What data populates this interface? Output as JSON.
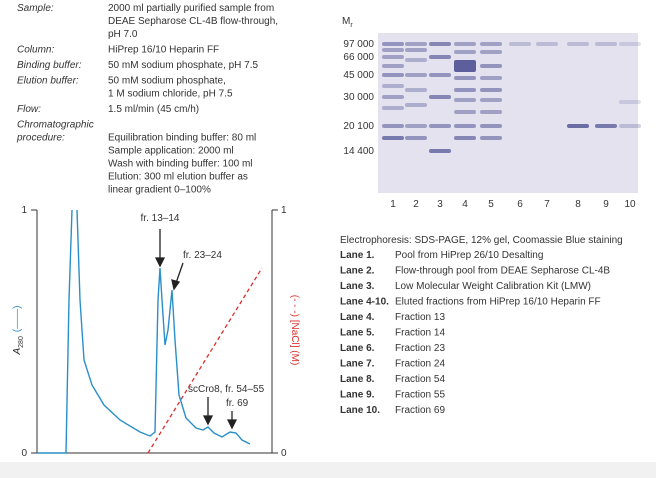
{
  "conditions": [
    {
      "label": "Sample:",
      "lines": [
        "2000 ml partially purified sample from",
        "DEAE Sepharose CL-4B flow-through,",
        "pH 7.0"
      ]
    },
    {
      "label": "Column:",
      "lines": [
        "HiPrep 16/10 Heparin FF"
      ]
    },
    {
      "label": "Binding buffer:",
      "lines": [
        "50 mM sodium phosphate, pH 7.5"
      ]
    },
    {
      "label": "Elution buffer:",
      "lines": [
        "50 mM sodium phosphate,",
        "1 M sodium chloride, pH 7.5"
      ]
    },
    {
      "label": "Flow:",
      "lines": [
        "1.5 ml/min (45 cm/h)"
      ]
    },
    {
      "label": "Chromatographic procedure:",
      "label_lines": [
        "Chromatographic",
        "procedure:"
      ],
      "lines": [
        "",
        "Equilibration binding buffer: 80 ml",
        "Sample application: 2000 ml",
        "Wash with binding buffer: 100 ml",
        "Elution: 300 ml elution buffer as",
        "linear gradient 0–100%"
      ]
    }
  ],
  "chromatogram": {
    "left_axis": {
      "top": "1",
      "bottom": "0",
      "symbol": "A",
      "subscript": "280",
      "line": "(——)"
    },
    "right_axis": {
      "top": "1",
      "bottom": "0",
      "label": "(- - -) [NaCl] (M)"
    },
    "annotations": [
      "fr. 13–14",
      "fr. 23–24",
      "scCro8, fr. 54–55",
      "fr. 69"
    ]
  },
  "gel": {
    "mr": {
      "symbol": "M",
      "subscript": "r"
    },
    "markers": [
      "97 000",
      "66 000",
      "45 000",
      "30 000",
      "20 100",
      "14 400"
    ],
    "lane_numbers": [
      "1",
      "2",
      "3",
      "4",
      "5",
      "6",
      "7",
      "8",
      "9",
      "10"
    ],
    "caption": "Electrophoresis: SDS-PAGE, 12% gel, Coomassie Blue staining",
    "lanes": [
      [
        "Lane 1.",
        "Pool from HiPrep 26/10 Desalting"
      ],
      [
        "Lane 2.",
        "Flow-through pool from DEAE Sepharose CL-4B"
      ],
      [
        "Lane 3.",
        "Low Molecular Weight Calibration Kit (LMW)"
      ],
      [
        "Lane 4-10.",
        "Eluted fractions from HiPrep 16/10 Heparin FF"
      ],
      [
        "Lane 4.",
        "Fraction 13"
      ],
      [
        "Lane 5.",
        "Fraction 14"
      ],
      [
        "Lane 6.",
        "Fraction 23"
      ],
      [
        "Lane 7.",
        "Fraction 24"
      ],
      [
        "Lane 8.",
        "Fraction 54"
      ],
      [
        "Lane 9.",
        "Fraction 55"
      ],
      [
        "Lane 10.",
        "Fraction 69"
      ]
    ]
  }
}
